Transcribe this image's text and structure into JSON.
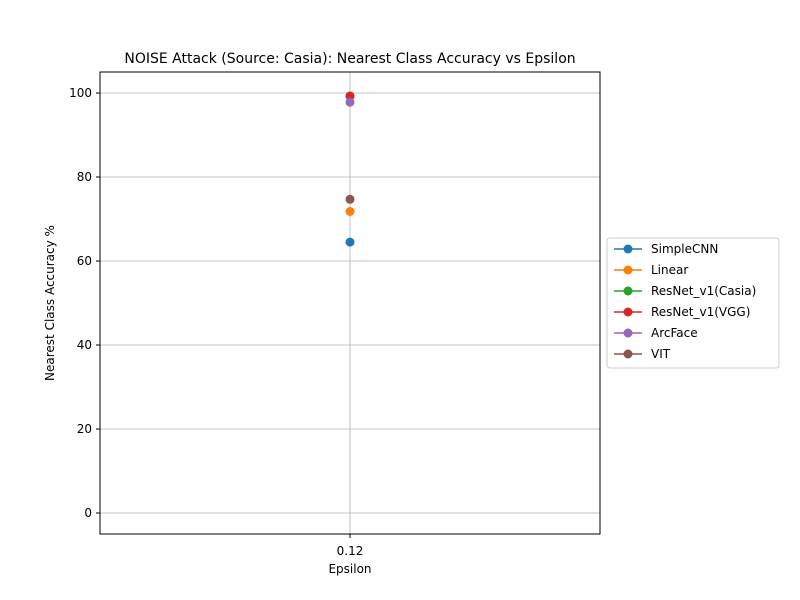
{
  "chart_data": {
    "type": "line",
    "title": "NOISE Attack (Source: Casia): Nearest Class Accuracy vs Epsilon",
    "xlabel": "Epsilon",
    "ylabel": "Nearest Class Accuracy %",
    "x_categories": [
      "0.12"
    ],
    "ylim": [
      -5,
      105
    ],
    "yticks": [
      0,
      20,
      40,
      60,
      80,
      100
    ],
    "grid": true,
    "legend_position": "right-outside",
    "series": [
      {
        "name": "SimpleCNN",
        "color": "#1f77b4",
        "values": [
          64.5
        ]
      },
      {
        "name": "Linear",
        "color": "#ff7f0e",
        "values": [
          71.8
        ]
      },
      {
        "name": "ResNet_v1(Casia)",
        "color": "#2ca02c",
        "values": [
          99.2
        ]
      },
      {
        "name": "ResNet_v1(VGG)",
        "color": "#d62728",
        "values": [
          99.3
        ]
      },
      {
        "name": "ArcFace",
        "color": "#9467bd",
        "values": [
          97.8
        ]
      },
      {
        "name": "VIT",
        "color": "#8c564b",
        "values": [
          74.7
        ]
      }
    ]
  }
}
